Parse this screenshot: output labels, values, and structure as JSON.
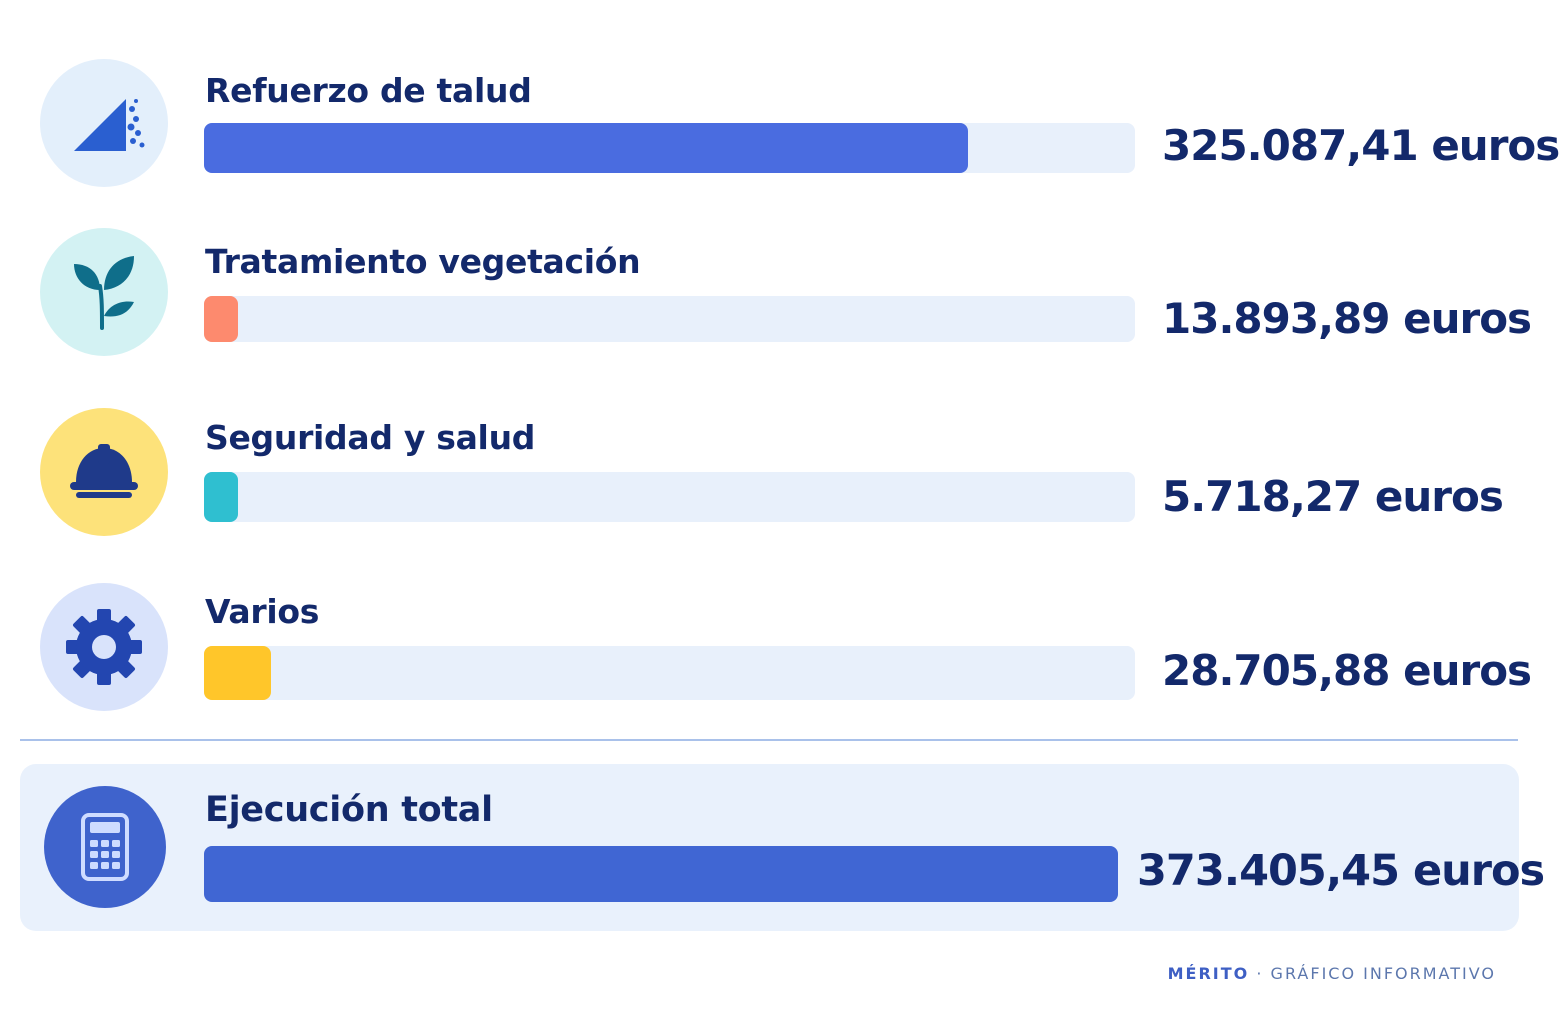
{
  "chart_data": {
    "type": "bar",
    "orientation": "horizontal",
    "categories": [
      "Refuerzo de talud",
      "Tratamiento vegetación",
      "Seguridad y salud",
      "Varios",
      "Ejecución total"
    ],
    "values": [
      325087.41,
      13893.89,
      5718.27,
      28705.88,
      373405.45
    ],
    "value_labels": [
      "325.087,41 euros",
      "13.893,89 euros",
      "5.718,27 euros",
      "28.705,88 euros",
      "373.405,45 euros"
    ],
    "xlim": [
      0,
      373405.45
    ],
    "unit": "euros",
    "grid": false,
    "legend": "none"
  },
  "items": [
    {
      "label": "Refuerzo de talud",
      "value": 325087.41,
      "value_text": "325.087,41 euros",
      "icon": "slope-icon",
      "color": "#4a6ce0",
      "icon_bg": "#e3effb"
    },
    {
      "label": "Tratamiento vegetación",
      "value": 13893.89,
      "value_text": "13.893,89 euros",
      "icon": "plant-icon",
      "color": "#fd8a6e",
      "icon_bg": "#d3f2f3"
    },
    {
      "label": "Seguridad y salud",
      "value": 5718.27,
      "value_text": "5.718,27 euros",
      "icon": "hardhat-icon",
      "color": "#2fbfd0",
      "icon_bg": "#fde27a"
    },
    {
      "label": "Varios",
      "value": 28705.88,
      "value_text": "28.705,88 euros",
      "icon": "gear-icon",
      "color": "#ffc62a",
      "icon_bg": "#d9e3fb"
    }
  ],
  "total": {
    "label": "Ejecución total",
    "value": 373405.45,
    "value_text": "373.405,45 euros",
    "icon": "calculator-icon",
    "color": "#4066d3",
    "icon_bg": "#3f63cc"
  },
  "footer": {
    "brand": "MÉRITO",
    "separator": "·",
    "text": "GRÁFICO INFORMATIVO"
  }
}
